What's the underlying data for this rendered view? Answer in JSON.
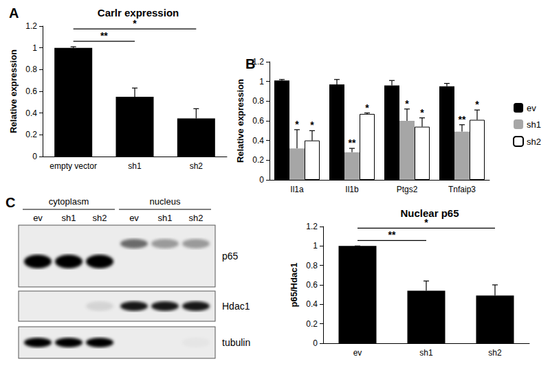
{
  "chart_data": [
    {
      "panel_label": "A",
      "type": "bar",
      "title": "Carlr expression",
      "y_label": "Relative expression",
      "categories": [
        "empty vector",
        "sh1",
        "sh2"
      ],
      "values": [
        1.0,
        0.55,
        0.35
      ],
      "errors": [
        0.01,
        0.08,
        0.09
      ],
      "color": "#000000",
      "ylim": [
        0,
        1.2
      ],
      "yticks": [
        0,
        0.2,
        0.4,
        0.6,
        0.8,
        1,
        1.2
      ],
      "comparisons": [
        {
          "from": "empty vector",
          "to": "sh1",
          "label": "**"
        },
        {
          "from": "empty vector",
          "to": "sh2",
          "label": "*"
        }
      ]
    },
    {
      "panel_label": "B",
      "type": "bar",
      "y_label": "Relative expression",
      "categories": [
        "Il1a",
        "Il1b",
        "Ptgs2",
        "Tnfaip3"
      ],
      "series": [
        {
          "name": "ev",
          "color": "#000000",
          "values": [
            1.01,
            0.97,
            0.96,
            0.95
          ],
          "errors": [
            0.01,
            0.05,
            0.05,
            0.03
          ]
        },
        {
          "name": "sh1",
          "color": "#a6a6a6",
          "values": [
            0.32,
            0.28,
            0.6,
            0.49
          ],
          "errors": [
            0.19,
            0.04,
            0.12,
            0.07
          ],
          "significance": [
            "*",
            "**",
            "*",
            "**"
          ]
        },
        {
          "name": "sh2",
          "color": "#ffffff",
          "values": [
            0.4,
            0.67,
            0.54,
            0.61
          ],
          "errors": [
            0.1,
            0.01,
            0.09,
            0.1
          ],
          "significance": [
            "*",
            "*",
            "*",
            "*"
          ]
        }
      ],
      "legend": "right",
      "ylim": [
        0,
        1.2
      ],
      "yticks": [
        0,
        0.2,
        0.4,
        0.6,
        0.8,
        1,
        1.2
      ]
    },
    {
      "type": "bar",
      "title": "Nuclear p65",
      "y_label": "p65/Hdac1",
      "categories": [
        "ev",
        "sh1",
        "sh2"
      ],
      "values": [
        1.0,
        0.54,
        0.49
      ],
      "errors": [
        0.0,
        0.1,
        0.11
      ],
      "color": "#000000",
      "ylim": [
        0,
        1.2
      ],
      "yticks": [
        0,
        0.2,
        0.4,
        0.6,
        0.8,
        1,
        1.2
      ],
      "comparisons": [
        {
          "from": "ev",
          "to": "sh1",
          "label": "**"
        },
        {
          "from": "ev",
          "to": "sh2",
          "label": "*"
        }
      ]
    }
  ],
  "blot": {
    "panel_label": "C",
    "groups": [
      {
        "name": "cytoplasm",
        "lanes": [
          "ev",
          "sh1",
          "sh2"
        ]
      },
      {
        "name": "nucleus",
        "lanes": [
          "ev",
          "sh1",
          "sh2"
        ]
      }
    ],
    "rows": [
      {
        "label": "p65",
        "intensity": [
          1,
          1,
          1,
          0.55,
          0.35,
          0.35
        ]
      },
      {
        "label": "Hdac1",
        "intensity": [
          0,
          0,
          0.1,
          0.9,
          0.9,
          0.9
        ]
      },
      {
        "label": "tubulin",
        "intensity": [
          1,
          1,
          1,
          0,
          0,
          0.03
        ]
      }
    ]
  }
}
